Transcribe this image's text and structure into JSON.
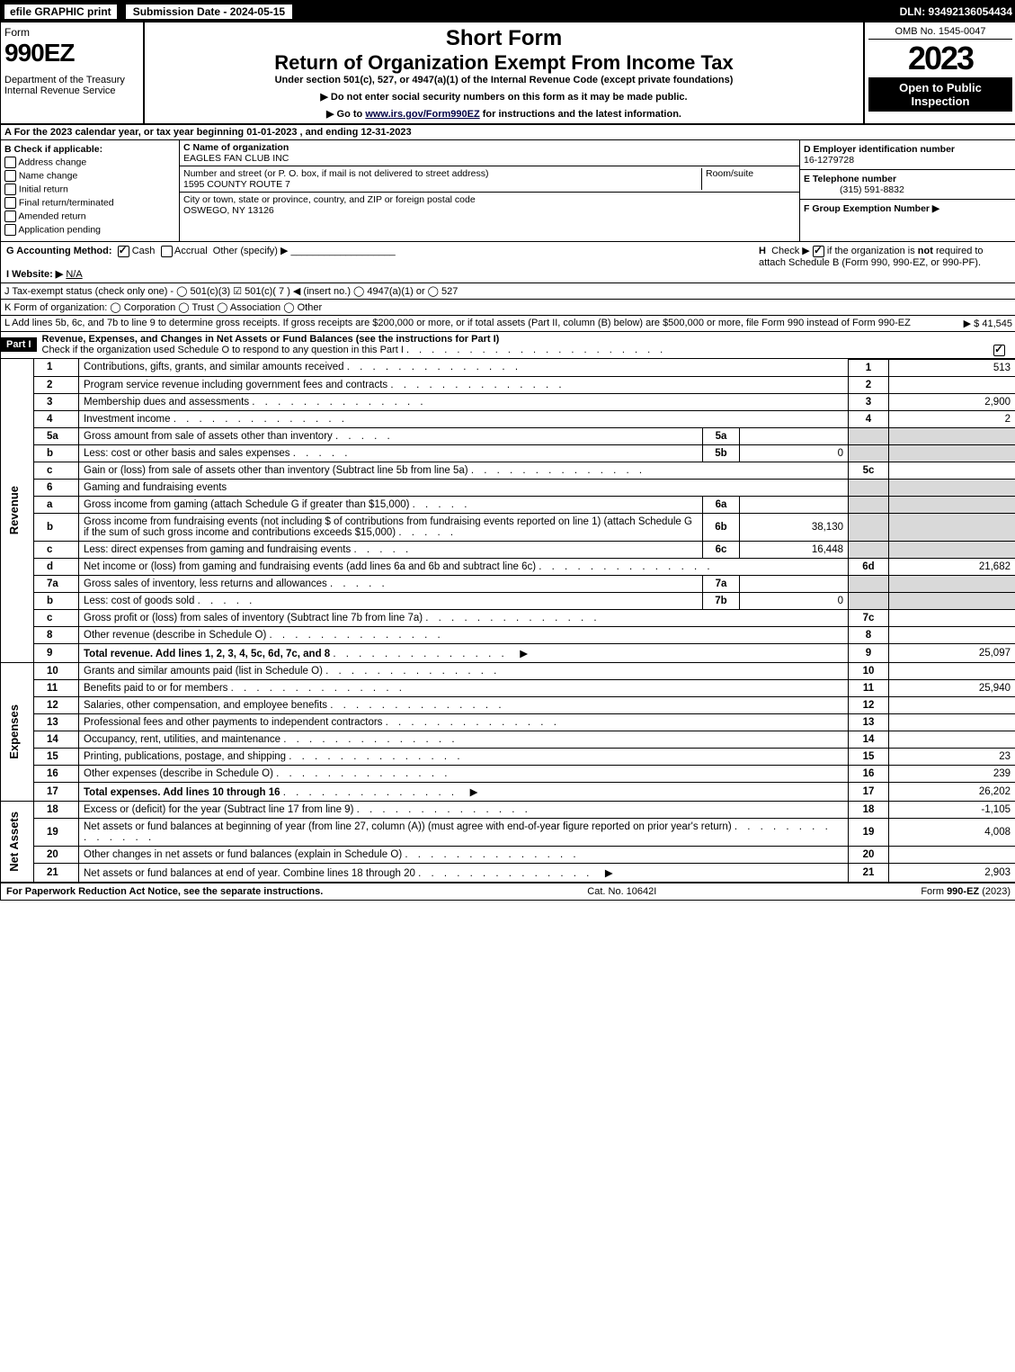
{
  "topBar": {
    "efile": "efile GRAPHIC print",
    "subDate": "Submission Date - 2024-05-15",
    "dln": "DLN: 93492136054434"
  },
  "header": {
    "formLabel": "Form",
    "formNum": "990EZ",
    "dept": "Department of the Treasury",
    "irs": "Internal Revenue Service",
    "shortForm": "Short Form",
    "title": "Return of Organization Exempt From Income Tax",
    "subtitle": "Under section 501(c), 527, or 4947(a)(1) of the Internal Revenue Code (except private foundations)",
    "note1": "▶ Do not enter social security numbers on this form as it may be made public.",
    "note2": "▶ Go to www.irs.gov/Form990EZ for instructions and the latest information.",
    "omb": "OMB No. 1545-0047",
    "year": "2023",
    "openTo": "Open to Public Inspection"
  },
  "sectionA": "A  For the 2023 calendar year, or tax year beginning 01-01-2023 , and ending 12-31-2023",
  "boxB": {
    "label": "B  Check if applicable:",
    "items": [
      "Address change",
      "Name change",
      "Initial return",
      "Final return/terminated",
      "Amended return",
      "Application pending"
    ]
  },
  "boxC": {
    "nameLabel": "C Name of organization",
    "name": "EAGLES FAN CLUB INC",
    "streetLabel": "Number and street (or P. O. box, if mail is not delivered to street address)",
    "roomLabel": "Room/suite",
    "street": "1595 COUNTY ROUTE 7",
    "cityLabel": "City or town, state or province, country, and ZIP or foreign postal code",
    "city": "OSWEGO, NY  13126"
  },
  "boxD": {
    "einLabel": "D Employer identification number",
    "ein": "16-1279728",
    "telLabel": "E Telephone number",
    "tel": "(315) 591-8832",
    "groupLabel": "F Group Exemption Number  ▶"
  },
  "rowG": {
    "label": "G Accounting Method:",
    "cash": "Cash",
    "accrual": "Accrual",
    "other": "Other (specify) ▶"
  },
  "rowH": "H  Check ▶ ☑ if the organization is not required to attach Schedule B (Form 990, 990-EZ, or 990-PF).",
  "rowI": {
    "label": "I Website: ▶",
    "val": "N/A"
  },
  "rowJ": "J Tax-exempt status (check only one) - ◯ 501(c)(3)  ☑ 501(c)( 7 ) ◀ (insert no.)  ◯ 4947(a)(1) or  ◯ 527",
  "rowK": "K Form of organization:   ◯ Corporation   ◯ Trust   ◯ Association   ◯ Other",
  "rowL": {
    "text": "L Add lines 5b, 6c, and 7b to line 9 to determine gross receipts. If gross receipts are $200,000 or more, or if total assets (Part II, column (B) below) are $500,000 or more, file Form 990 instead of Form 990-EZ",
    "amount": "▶ $ 41,545"
  },
  "partI": {
    "header": "Part I",
    "title": "Revenue, Expenses, and Changes in Net Assets or Fund Balances (see the instructions for Part I)",
    "note": "Check if the organization used Schedule O to respond to any question in this Part I"
  },
  "sideLabels": {
    "revenue": "Revenue",
    "expenses": "Expenses",
    "netAssets": "Net Assets"
  },
  "lines": [
    {
      "n": "1",
      "desc": "Contributions, gifts, grants, and similar amounts received",
      "ln": "1",
      "val": "513"
    },
    {
      "n": "2",
      "desc": "Program service revenue including government fees and contracts",
      "ln": "2",
      "val": ""
    },
    {
      "n": "3",
      "desc": "Membership dues and assessments",
      "ln": "3",
      "val": "2,900"
    },
    {
      "n": "4",
      "desc": "Investment income",
      "ln": "4",
      "val": "2"
    },
    {
      "n": "5a",
      "desc": "Gross amount from sale of assets other than inventory",
      "sub": "5a",
      "subval": ""
    },
    {
      "n": "b",
      "desc": "Less: cost or other basis and sales expenses",
      "sub": "5b",
      "subval": "0"
    },
    {
      "n": "c",
      "desc": "Gain or (loss) from sale of assets other than inventory (Subtract line 5b from line 5a)",
      "ln": "5c",
      "val": ""
    },
    {
      "n": "6",
      "desc": "Gaming and fundraising events"
    },
    {
      "n": "a",
      "desc": "Gross income from gaming (attach Schedule G if greater than $15,000)",
      "sub": "6a",
      "subval": ""
    },
    {
      "n": "b",
      "desc": "Gross income from fundraising events (not including $                    of contributions from fundraising events reported on line 1) (attach Schedule G if the sum of such gross income and contributions exceeds $15,000)",
      "sub": "6b",
      "subval": "38,130"
    },
    {
      "n": "c",
      "desc": "Less: direct expenses from gaming and fundraising events",
      "sub": "6c",
      "subval": "16,448"
    },
    {
      "n": "d",
      "desc": "Net income or (loss) from gaming and fundraising events (add lines 6a and 6b and subtract line 6c)",
      "ln": "6d",
      "val": "21,682"
    },
    {
      "n": "7a",
      "desc": "Gross sales of inventory, less returns and allowances",
      "sub": "7a",
      "subval": ""
    },
    {
      "n": "b",
      "desc": "Less: cost of goods sold",
      "sub": "7b",
      "subval": "0"
    },
    {
      "n": "c",
      "desc": "Gross profit or (loss) from sales of inventory (Subtract line 7b from line 7a)",
      "ln": "7c",
      "val": ""
    },
    {
      "n": "8",
      "desc": "Other revenue (describe in Schedule O)",
      "ln": "8",
      "val": ""
    },
    {
      "n": "9",
      "desc": "Total revenue. Add lines 1, 2, 3, 4, 5c, 6d, 7c, and 8",
      "ln": "9",
      "val": "25,097",
      "bold": true,
      "arrow": true
    }
  ],
  "expenseLines": [
    {
      "n": "10",
      "desc": "Grants and similar amounts paid (list in Schedule O)",
      "ln": "10",
      "val": ""
    },
    {
      "n": "11",
      "desc": "Benefits paid to or for members",
      "ln": "11",
      "val": "25,940"
    },
    {
      "n": "12",
      "desc": "Salaries, other compensation, and employee benefits",
      "ln": "12",
      "val": ""
    },
    {
      "n": "13",
      "desc": "Professional fees and other payments to independent contractors",
      "ln": "13",
      "val": ""
    },
    {
      "n": "14",
      "desc": "Occupancy, rent, utilities, and maintenance",
      "ln": "14",
      "val": ""
    },
    {
      "n": "15",
      "desc": "Printing, publications, postage, and shipping",
      "ln": "15",
      "val": "23"
    },
    {
      "n": "16",
      "desc": "Other expenses (describe in Schedule O)",
      "ln": "16",
      "val": "239"
    },
    {
      "n": "17",
      "desc": "Total expenses. Add lines 10 through 16",
      "ln": "17",
      "val": "26,202",
      "bold": true,
      "arrow": true
    }
  ],
  "netLines": [
    {
      "n": "18",
      "desc": "Excess or (deficit) for the year (Subtract line 17 from line 9)",
      "ln": "18",
      "val": "-1,105"
    },
    {
      "n": "19",
      "desc": "Net assets or fund balances at beginning of year (from line 27, column (A)) (must agree with end-of-year figure reported on prior year's return)",
      "ln": "19",
      "val": "4,008"
    },
    {
      "n": "20",
      "desc": "Other changes in net assets or fund balances (explain in Schedule O)",
      "ln": "20",
      "val": ""
    },
    {
      "n": "21",
      "desc": "Net assets or fund balances at end of year. Combine lines 18 through 20",
      "ln": "21",
      "val": "2,903",
      "arrow": true
    }
  ],
  "footer": {
    "left": "For Paperwork Reduction Act Notice, see the separate instructions.",
    "center": "Cat. No. 10642I",
    "right": "Form 990-EZ (2023)"
  }
}
